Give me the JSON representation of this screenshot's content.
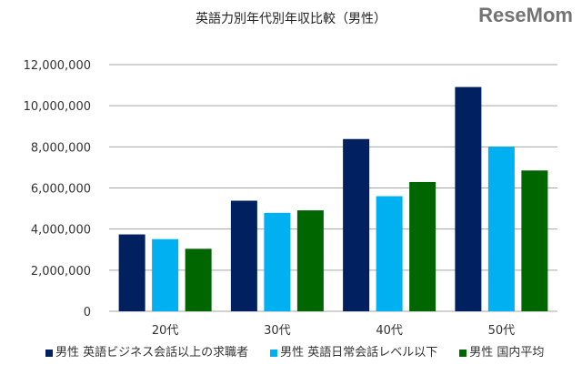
{
  "chart_data": {
    "type": "bar",
    "title": "英語力別年代別年収比較（男性）",
    "categories": [
      "20代",
      "30代",
      "40代",
      "50代"
    ],
    "series": [
      {
        "name": "男性 英語ビジネス会話以上の求職者",
        "color": "#002060",
        "values": [
          3740000,
          5380000,
          8380000,
          10910000
        ]
      },
      {
        "name": "男性 英語日常会話レベル以下",
        "color": "#00B0F0",
        "values": [
          3510000,
          4790000,
          5600000,
          8010000
        ]
      },
      {
        "name": "男性 国内平均",
        "color": "#006600",
        "values": [
          3040000,
          4910000,
          6290000,
          6850000
        ]
      }
    ],
    "ylim": [
      0,
      12000000
    ],
    "yticks": [
      "0",
      "2,000,000",
      "4,000,000",
      "6,000,000",
      "8,000,000",
      "10,000,000",
      "12,000,000"
    ],
    "grid": true,
    "legend": "bottom"
  },
  "watermark": "ReseMom"
}
